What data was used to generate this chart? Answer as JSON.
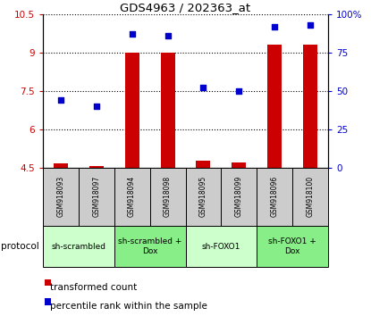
{
  "title": "GDS4963 / 202363_at",
  "samples": [
    "GSM918093",
    "GSM918097",
    "GSM918094",
    "GSM918098",
    "GSM918095",
    "GSM918099",
    "GSM918096",
    "GSM918100"
  ],
  "transformed_count": [
    4.65,
    4.55,
    9.0,
    9.0,
    4.75,
    4.68,
    9.3,
    9.3
  ],
  "percentile_rank": [
    44,
    40,
    87,
    86,
    52,
    50,
    92,
    93
  ],
  "ylim_left": [
    4.5,
    10.5
  ],
  "ylim_right": [
    0,
    100
  ],
  "yticks_left": [
    4.5,
    6.0,
    7.5,
    9.0,
    10.5
  ],
  "yticks_right": [
    0,
    25,
    50,
    75,
    100
  ],
  "ytick_labels_left": [
    "4.5",
    "6",
    "7.5",
    "9",
    "10.5"
  ],
  "ytick_labels_right": [
    "0",
    "25",
    "50",
    "75",
    "100%"
  ],
  "bar_color": "#cc0000",
  "dot_color": "#0000cc",
  "bar_width": 0.4,
  "proto_labels": [
    "sh-scrambled",
    "sh-scrambled +\nDox",
    "sh-FOXO1",
    "sh-FOXO1 +\nDox"
  ],
  "proto_colors": [
    "#ccffcc",
    "#88ee88",
    "#ccffcc",
    "#88ee88"
  ],
  "proto_ranges": [
    [
      0,
      1
    ],
    [
      2,
      3
    ],
    [
      4,
      5
    ],
    [
      6,
      7
    ]
  ],
  "legend_red": "transformed count",
  "legend_blue": "percentile rank within the sample",
  "protocol_label": "protocol",
  "tick_color_left": "#cc0000",
  "tick_color_right": "#0000cc",
  "sample_box_color": "#cccccc"
}
